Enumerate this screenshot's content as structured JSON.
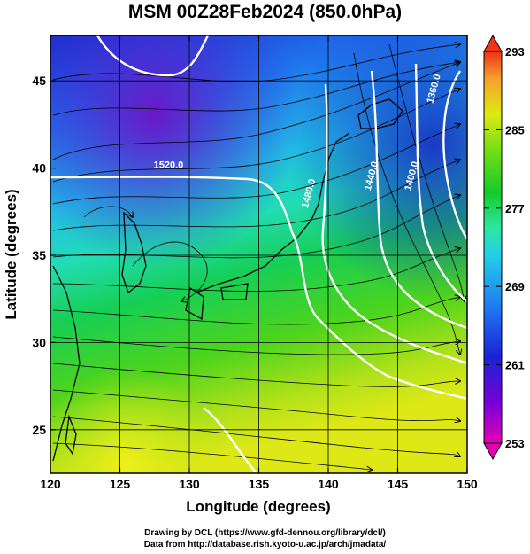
{
  "title": "MSM 00Z28Feb2024 (850.0hPa)",
  "map": {
    "lon_range": [
      120,
      150
    ],
    "lat_range": [
      22.5,
      47.6
    ],
    "x_ticks": [
      120,
      125,
      130,
      135,
      140,
      145,
      150
    ],
    "y_ticks": [
      25,
      30,
      35,
      40,
      45
    ],
    "xlabel": "Longitude (degrees)",
    "ylabel": "Latitude  (degrees)",
    "contours": [
      {
        "label": "1520.0",
        "lon": 128.5,
        "lat": 40.0
      },
      {
        "label": "1480.0",
        "lon": 138.8,
        "lat": 38.5
      },
      {
        "label": "1440.0",
        "lon": 143.3,
        "lat": 39.5
      },
      {
        "label": "1400.0",
        "lon": 146.2,
        "lat": 39.5
      },
      {
        "label": "1360.0",
        "lon": 147.8,
        "lat": 44.5
      }
    ]
  },
  "colorbar": {
    "ticks": [
      "293",
      "285",
      "277",
      "269",
      "261",
      "253"
    ]
  },
  "credits": {
    "line1": "Drawing by DCL (https://www.gfd-dennou.org/library/dcl/)",
    "line2": "Data from http://database.rish.kyoto-u.ac.jp/arch/jmadata/"
  }
}
